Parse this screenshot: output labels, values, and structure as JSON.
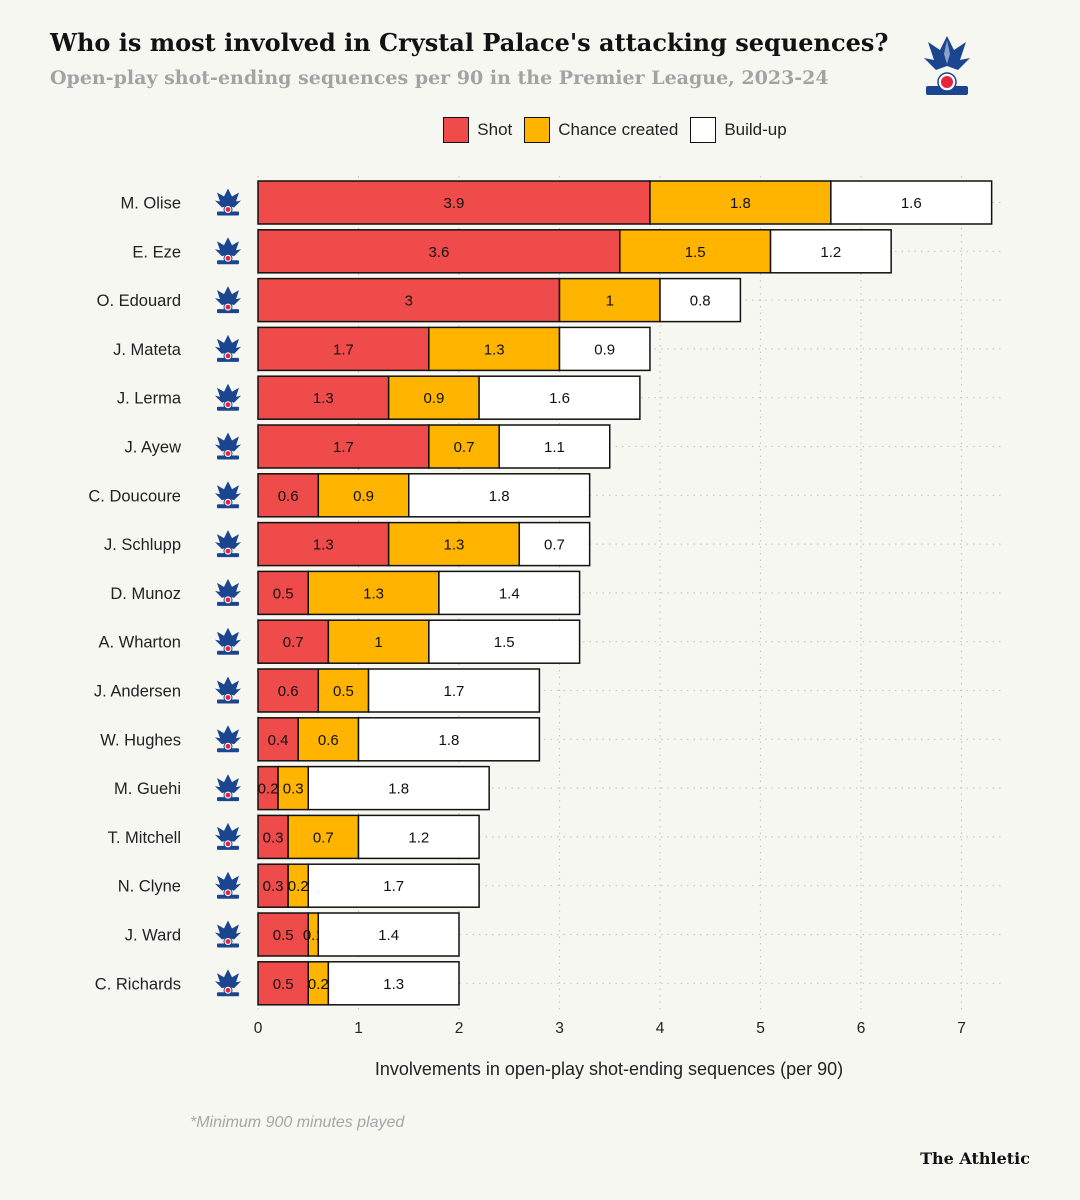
{
  "header": {
    "title": "Who is most involved in Crystal Palace's attacking sequences?",
    "subtitle": "Open-play shot-ending sequences per 90 in the Premier League, 2023-24"
  },
  "legend": [
    {
      "label": "Shot",
      "color": "#ef4b4b"
    },
    {
      "label": "Chance created",
      "color": "#ffb500"
    },
    {
      "label": "Build-up",
      "color": "#ffffff"
    }
  ],
  "footnote": "*Minimum 900 minutes played",
  "brand": "The Athletic",
  "chart_data": {
    "type": "bar",
    "orientation": "horizontal",
    "stacked": true,
    "title": "",
    "xlabel": "Involvements in open-play shot-ending sequences (per 90)",
    "xlim": [
      0,
      7
    ],
    "xticks": [
      0,
      1,
      2,
      3,
      4,
      5,
      6,
      7
    ],
    "grid": true,
    "legend_position": "top",
    "categories": [
      "M. Olise",
      "E. Eze",
      "O. Edouard",
      "J. Mateta",
      "J. Lerma",
      "J. Ayew",
      "C. Doucoure",
      "J. Schlupp",
      "D. Munoz",
      "A. Wharton",
      "J. Andersen",
      "W. Hughes",
      "M. Guehi",
      "T. Mitchell",
      "N. Clyne",
      "J. Ward",
      "C. Richards"
    ],
    "series": [
      {
        "name": "Shot",
        "color": "#ef4b4b",
        "values": [
          3.9,
          3.6,
          3,
          1.7,
          1.3,
          1.7,
          0.6,
          1.3,
          0.5,
          0.7,
          0.6,
          0.4,
          0.2,
          0.3,
          0.3,
          0.5,
          0.5
        ]
      },
      {
        "name": "Chance created",
        "color": "#ffb500",
        "values": [
          1.8,
          1.5,
          1,
          1.3,
          0.9,
          0.7,
          0.9,
          1.3,
          1.3,
          1,
          0.5,
          0.6,
          0.3,
          0.7,
          0.2,
          0.1,
          0.2
        ]
      },
      {
        "name": "Build-up",
        "color": "#ffffff",
        "values": [
          1.6,
          1.2,
          0.8,
          0.9,
          1.6,
          1.1,
          1.8,
          0.7,
          1.4,
          1.5,
          1.7,
          1.8,
          1.8,
          1.2,
          1.7,
          1.4,
          1.3
        ]
      }
    ]
  }
}
